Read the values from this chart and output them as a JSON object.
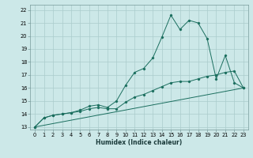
{
  "xlabel": "Humidex (Indice chaleur)",
  "bg_color": "#cce8e8",
  "grid_color": "#aacccc",
  "line_color": "#1a6e5e",
  "xlim": [
    -0.5,
    23.5
  ],
  "ylim": [
    12.8,
    22.4
  ],
  "xticks": [
    0,
    1,
    2,
    3,
    4,
    5,
    6,
    7,
    8,
    9,
    10,
    11,
    12,
    13,
    14,
    15,
    16,
    17,
    18,
    19,
    20,
    21,
    22,
    23
  ],
  "yticks": [
    13,
    14,
    15,
    16,
    17,
    18,
    19,
    20,
    21,
    22
  ],
  "line1_x": [
    0,
    1,
    2,
    3,
    4,
    5,
    6,
    7,
    8,
    9,
    10,
    11,
    12,
    13,
    14,
    15,
    16,
    17,
    18,
    19,
    20,
    21,
    22,
    23
  ],
  "line1_y": [
    13.0,
    13.7,
    13.9,
    14.0,
    14.1,
    14.2,
    14.4,
    14.5,
    14.4,
    14.4,
    14.9,
    15.3,
    15.5,
    15.8,
    16.1,
    16.4,
    16.5,
    16.5,
    16.7,
    16.9,
    17.0,
    17.2,
    17.3,
    16.0
  ],
  "line2_x": [
    0,
    1,
    2,
    3,
    4,
    5,
    6,
    7,
    8,
    9,
    10,
    11,
    12,
    13,
    14,
    15,
    16,
    17,
    18,
    19,
    20,
    21,
    22,
    23
  ],
  "line2_y": [
    13.0,
    13.7,
    13.9,
    14.0,
    14.1,
    14.3,
    14.6,
    14.7,
    14.5,
    15.0,
    16.2,
    17.2,
    17.5,
    18.3,
    19.9,
    21.6,
    20.5,
    21.2,
    21.0,
    19.8,
    16.7,
    18.5,
    16.4,
    16.0
  ],
  "line3_x": [
    0,
    23
  ],
  "line3_y": [
    13.0,
    16.0
  ],
  "xlabel_fontsize": 5.5,
  "tick_fontsize": 4.8
}
